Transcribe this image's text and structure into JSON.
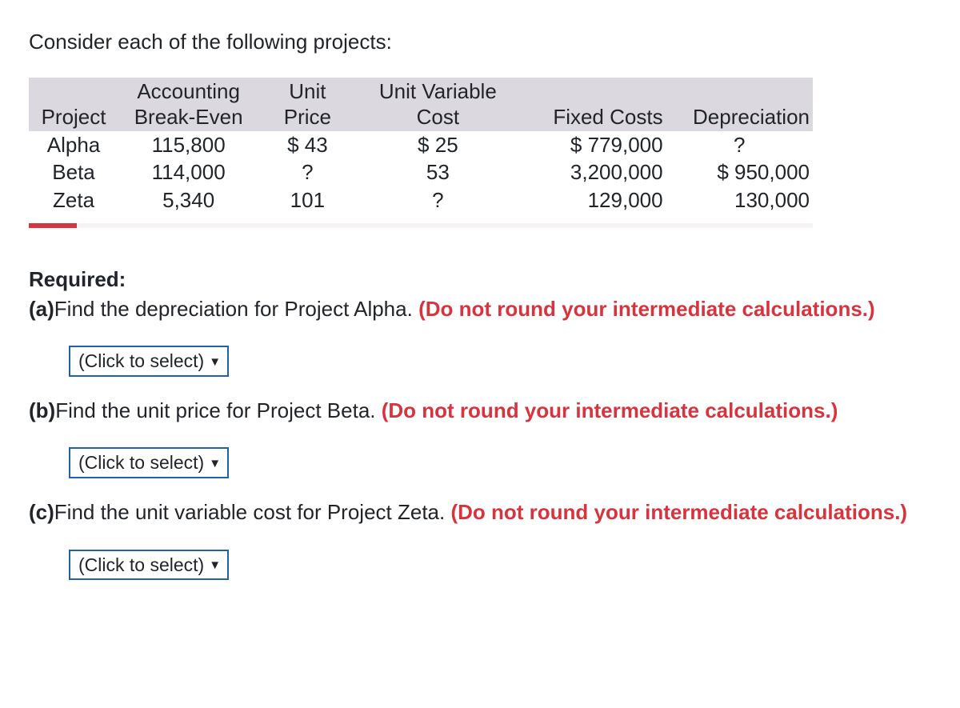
{
  "intro": "Consider each of the following projects:",
  "table": {
    "header_bg": "#dbd8df",
    "columns": [
      {
        "label_top": "",
        "label_bot": "Project"
      },
      {
        "label_top": "Accounting",
        "label_bot": "Break-Even"
      },
      {
        "label_top": "Unit",
        "label_bot": "Price"
      },
      {
        "label_top": "Unit Variable",
        "label_bot": "Cost"
      },
      {
        "label_top": "",
        "label_bot": "Fixed Costs"
      },
      {
        "label_top": "",
        "label_bot": "Depreciation"
      }
    ],
    "rows": [
      {
        "project": "Alpha",
        "abe": "115,800",
        "up": "$ 43",
        "uvc": "$ 25",
        "fc": "$ 779,000",
        "dep": "?"
      },
      {
        "project": "Beta",
        "abe": "114,000",
        "up": "?",
        "uvc": "53",
        "fc": "3,200,000",
        "dep": "$ 950,000"
      },
      {
        "project": "Zeta",
        "abe": "5,340",
        "up": "101",
        "uvc": "?",
        "fc": "129,000",
        "dep": "130,000"
      }
    ]
  },
  "accent": {
    "tab_color": "#d6343e",
    "bar_color": "#f7f2f3"
  },
  "required_label": "Required:",
  "parts": {
    "a": {
      "label": "(a)",
      "text": "Find the depreciation for Project Alpha. ",
      "hint": "(Do not round your intermediate calculations.)"
    },
    "b": {
      "label": "(b)",
      "text": "Find the unit price for Project Beta. ",
      "hint": "(Do not round your intermediate calculations.)"
    },
    "c": {
      "label": "(c)",
      "text": "Find the unit variable cost for Project Zeta. ",
      "hint": "(Do not round your intermediate calculations.)"
    }
  },
  "select_placeholder": "(Click to select)",
  "hint_color": "#d6343e"
}
